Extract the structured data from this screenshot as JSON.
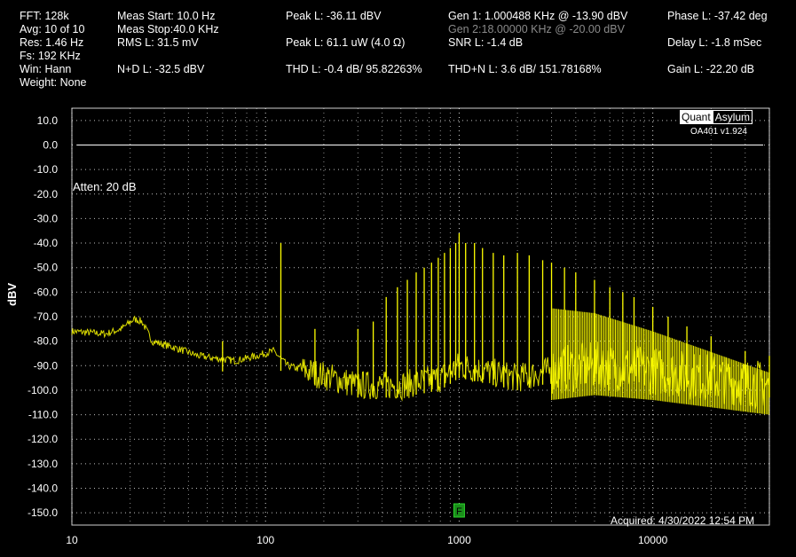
{
  "header": {
    "col1": [
      "FFT:  128k",
      "Avg:  10 of 10",
      "Res:  1.46 Hz",
      "Fs:  192 KHz",
      "Win:  Hann",
      "Weight:  None"
    ],
    "col2": [
      "Meas Start: 10.0 Hz",
      "Meas Stop:40.0 KHz",
      "RMS L: 31.5 mV",
      "",
      "N+D L: -32.5 dBV"
    ],
    "peak_l_dbv": "Peak L: -36.11 dBV",
    "peak_l_power": "Peak L: 61.1 uW (4.0 Ω)",
    "thd_l": "THD L: -0.4 dB/ 95.82263%",
    "gen1": "Gen 1: 1.000488 KHz @ -13.90  dBV",
    "gen2": "Gen 2:18.00000 KHz @ -20.00  dBV",
    "snr_l": "SNR L: -1.4 dB",
    "thdn_l": "THD+N L: 3.6 dB/ 151.78168%",
    "phase_l": "Phase L: -37.42 deg",
    "delay_l": "Delay L: -1.8 mSec",
    "gain_l": "Gain L: -22.20 dB"
  },
  "logo": {
    "quant": "Quant",
    "asylum": "Asylum",
    "version": "OA401 v1.924"
  },
  "annotations": {
    "atten": "Atten: 20 dB",
    "acquired": "Acquired: 4/30/2022   12:54 PM",
    "marker": "F"
  },
  "colors": {
    "trace": "#ffff00",
    "grid": "#ffffff",
    "bg": "#000000",
    "ref_line": "#ffffff",
    "marker": "#1a8f1a"
  },
  "chart_data": {
    "type": "line",
    "title": "",
    "xlabel": "",
    "ylabel": "dBV",
    "x_scale": "log",
    "xlim": [
      10,
      40000
    ],
    "ylim": [
      -155,
      15
    ],
    "x_ticks": [
      10,
      100,
      1000,
      10000
    ],
    "x_tick_labels": [
      "10",
      "100",
      "1000",
      "10000"
    ],
    "y_ticks": [
      10,
      0,
      -10,
      -20,
      -30,
      -40,
      -50,
      -60,
      -70,
      -80,
      -90,
      -100,
      -110,
      -120,
      -130,
      -140,
      -150
    ],
    "y_tick_labels": [
      "10.0",
      "0.0",
      "-10.0",
      "-20.0",
      "-30.0",
      "-40.0",
      "-50.0",
      "-60.0",
      "-70.0",
      "-80.0",
      "-90.0",
      "-100.0",
      "-110.0",
      "-120.0",
      "-130.0",
      "-140.0",
      "-150.0"
    ],
    "grid": true,
    "reference_line_dbv": 0,
    "noise_floor_approx": [
      {
        "x": 10,
        "y": -76
      },
      {
        "x": 15,
        "y": -77
      },
      {
        "x": 18,
        "y": -75
      },
      {
        "x": 21,
        "y": -71
      },
      {
        "x": 23,
        "y": -72
      },
      {
        "x": 26,
        "y": -80
      },
      {
        "x": 35,
        "y": -83
      },
      {
        "x": 45,
        "y": -86
      },
      {
        "x": 55,
        "y": -87
      },
      {
        "x": 70,
        "y": -88
      },
      {
        "x": 90,
        "y": -86
      },
      {
        "x": 110,
        "y": -84
      },
      {
        "x": 130,
        "y": -90
      },
      {
        "x": 160,
        "y": -92
      },
      {
        "x": 200,
        "y": -94
      },
      {
        "x": 300,
        "y": -98
      },
      {
        "x": 500,
        "y": -98
      },
      {
        "x": 800,
        "y": -95
      },
      {
        "x": 1000,
        "y": -90
      },
      {
        "x": 2000,
        "y": -95
      },
      {
        "x": 3000,
        "y": -92
      },
      {
        "x": 5000,
        "y": -90
      },
      {
        "x": 10000,
        "y": -92
      },
      {
        "x": 20000,
        "y": -95
      },
      {
        "x": 40000,
        "y": -98
      }
    ],
    "peaks": [
      {
        "x": 60,
        "y": -80
      },
      {
        "x": 120,
        "y": -40
      },
      {
        "x": 180,
        "y": -75
      },
      {
        "x": 300,
        "y": -75
      },
      {
        "x": 360,
        "y": -72
      },
      {
        "x": 420,
        "y": -62
      },
      {
        "x": 480,
        "y": -58
      },
      {
        "x": 540,
        "y": -55
      },
      {
        "x": 600,
        "y": -52
      },
      {
        "x": 660,
        "y": -50
      },
      {
        "x": 720,
        "y": -48
      },
      {
        "x": 780,
        "y": -46
      },
      {
        "x": 840,
        "y": -44
      },
      {
        "x": 900,
        "y": -42
      },
      {
        "x": 960,
        "y": -40
      },
      {
        "x": 1000,
        "y": -36
      },
      {
        "x": 1080,
        "y": -40
      },
      {
        "x": 1200,
        "y": -40
      },
      {
        "x": 1320,
        "y": -42
      },
      {
        "x": 1500,
        "y": -44
      },
      {
        "x": 1700,
        "y": -45
      },
      {
        "x": 2000,
        "y": -44
      },
      {
        "x": 2300,
        "y": -45
      },
      {
        "x": 2700,
        "y": -47
      },
      {
        "x": 3000,
        "y": -48
      },
      {
        "x": 3500,
        "y": -50
      },
      {
        "x": 4000,
        "y": -52
      },
      {
        "x": 5000,
        "y": -55
      },
      {
        "x": 6000,
        "y": -58
      },
      {
        "x": 7000,
        "y": -60
      },
      {
        "x": 8000,
        "y": -62
      },
      {
        "x": 10000,
        "y": -66
      },
      {
        "x": 12000,
        "y": -70
      },
      {
        "x": 15000,
        "y": -74
      },
      {
        "x": 20000,
        "y": -78
      },
      {
        "x": 30000,
        "y": -84
      },
      {
        "x": 40000,
        "y": -86
      }
    ],
    "dense_region_x": [
      3000,
      40000
    ],
    "marker_x": 1000
  }
}
